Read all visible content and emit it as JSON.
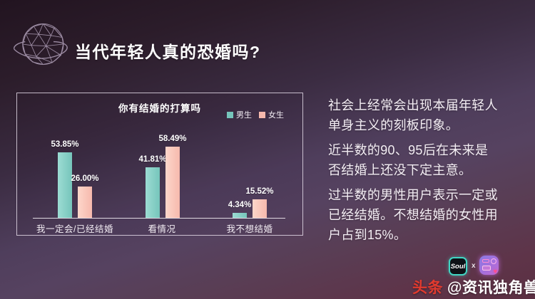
{
  "header": {
    "title": "当代年轻人真的恐婚吗?",
    "planet_icon": "wireframe-planet-with-ring",
    "planet_color": "#b9a8c2"
  },
  "chart_data": {
    "type": "bar",
    "title": "你有结婚的打算吗",
    "categories": [
      "我一定会/已经结婚",
      "看情况",
      "我不想结婚"
    ],
    "series": [
      {
        "name": "男生",
        "color": "#76c5bb",
        "color_light": "#9cdcd3",
        "values": [
          53.85,
          41.81,
          4.34
        ],
        "labels": [
          "53.85%",
          "41.81%",
          "4.34%"
        ]
      },
      {
        "name": "女生",
        "color": "#f6b9ad",
        "color_light": "#fdd6ca",
        "values": [
          26.0,
          58.49,
          15.52
        ],
        "labels": [
          "26.00%",
          "58.49%",
          "15.52%"
        ]
      }
    ],
    "value_suffix": "%",
    "ylim": [
      0,
      65
    ],
    "grid": false,
    "legend_position": "top-right",
    "value_labels_shown": true
  },
  "insights": {
    "paragraphs": [
      "社会上经常会出现本届年轻人\n单身主义的刻板印象。",
      "近半数的90、95后在未来是\n否结婚上还没下定主意。",
      "过半数的男性用户表示一定或\n已经结婚。不想结婚的女性用\n户占到15%。"
    ]
  },
  "footer": {
    "soul_logo_text": "Soul",
    "separator": "x",
    "unicorn_logo": "unicorn-app-logo",
    "watermark_badge": "头条",
    "watermark_handle": "@资讯独角兽",
    "badge_color": "#e23a2e",
    "soul_border_color": "#41d6c4"
  }
}
